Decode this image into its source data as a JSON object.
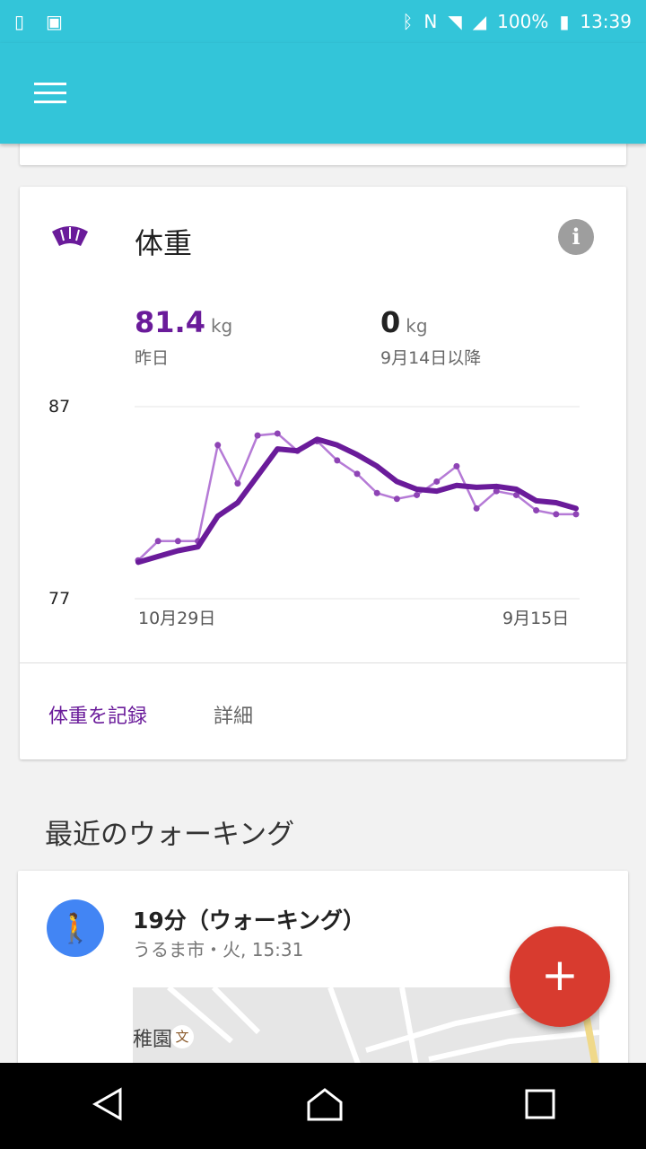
{
  "status": {
    "battery": "100%",
    "time": "13:39"
  },
  "weight_card": {
    "title": "体重",
    "current": {
      "value": "81.4",
      "unit": "kg",
      "label": "昨日"
    },
    "change": {
      "value": "0",
      "unit": "kg",
      "label": "9月14日以降"
    },
    "log_button": "体重を記録",
    "details_button": "詳細",
    "accent": "#6a1b9a"
  },
  "chart_data": {
    "type": "line",
    "ylim": [
      77,
      87
    ],
    "yticks": [
      "87",
      "77"
    ],
    "xticks": [
      "10月29日",
      "9月15日"
    ],
    "grid": true,
    "series": [
      {
        "name": "daily",
        "values": [
          79.0,
          80.0,
          80.0,
          80.0,
          85.0,
          83.0,
          85.5,
          85.6,
          84.7,
          85.2,
          84.2,
          83.5,
          82.5,
          82.2,
          82.4,
          83.1,
          83.9,
          81.7,
          82.6,
          82.4,
          81.6,
          81.4,
          81.4
        ]
      },
      {
        "name": "trend",
        "values": [
          78.9,
          79.2,
          79.5,
          79.7,
          81.3,
          82.0,
          83.4,
          84.8,
          84.7,
          85.3,
          85.0,
          84.5,
          83.9,
          83.1,
          82.7,
          82.6,
          82.9,
          82.8,
          82.85,
          82.7,
          82.1,
          82.0,
          81.7
        ]
      }
    ]
  },
  "section_title": "最近のウォーキング",
  "walking": {
    "title": "19分（ウォーキング）",
    "subtitle": "うるま市・火, 15:31",
    "map_label": "稚園",
    "map_poi": "文"
  },
  "fab": "+"
}
